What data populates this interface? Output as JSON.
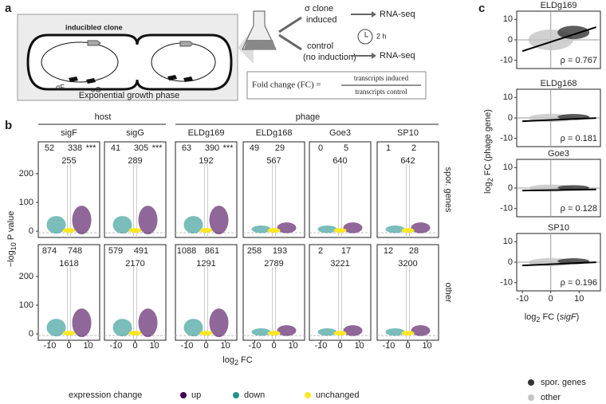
{
  "panel_a": {
    "label": "a",
    "clone": "inducibleσ clone",
    "gene_f": "σF",
    "gene_g": "σG",
    "caption": "Exponential growth phase",
    "induced": [
      "σ clone",
      "induced"
    ],
    "control": [
      "control",
      "(no induction)"
    ],
    "rnaseq": "RNA-seq",
    "time": "2 h",
    "formula": {
      "lhs": "Fold change (FC) =",
      "num": "transcripts induced",
      "den": "transcripts control"
    }
  },
  "panel_b": {
    "label": "b",
    "groups": [
      "host",
      "phage"
    ],
    "columns": [
      "sigF",
      "sigG",
      "ELDg169",
      "ELDg168",
      "Goe3",
      "SP10"
    ],
    "rows": [
      "spor. genes",
      "other"
    ],
    "counts": [
      [
        {
          "down": 52,
          "up": 338,
          "sig": "***",
          "unchanged": 255
        },
        {
          "down": 41,
          "up": 305,
          "sig": "***",
          "unchanged": 289
        },
        {
          "down": 63,
          "up": 390,
          "sig": "***",
          "unchanged": 192
        },
        {
          "down": 49,
          "up": 29,
          "unchanged": 567
        },
        {
          "down": 0,
          "up": 5,
          "unchanged": 640
        },
        {
          "down": 1,
          "up": 2,
          "unchanged": 642
        }
      ],
      [
        {
          "down": 874,
          "up": 748,
          "unchanged": 1618
        },
        {
          "down": 579,
          "up": 491,
          "unchanged": 2170
        },
        {
          "down": 1088,
          "up": 861,
          "unchanged": 1291
        },
        {
          "down": 258,
          "up": 193,
          "unchanged": 2789
        },
        {
          "down": 2,
          "up": 17,
          "unchanged": 3221
        },
        {
          "down": 12,
          "up": 28,
          "unchanged": 3200
        }
      ]
    ],
    "y_label": [
      "−log",
      "10",
      " P value"
    ],
    "x_label": [
      "log",
      "2",
      " FC"
    ],
    "ylim": [
      -22,
      311
    ],
    "yticks": [
      0,
      100,
      200
    ],
    "xlim": [
      -16,
      16
    ],
    "xticks": [
      -10,
      0,
      10
    ]
  },
  "panel_c": {
    "label": "c",
    "panels": [
      {
        "title": "ELDg169",
        "rho": "ρ = 0.767"
      },
      {
        "title": "ELDg168",
        "rho": "ρ = 0.181"
      },
      {
        "title": "Goe3",
        "rho": "ρ = 0.128"
      },
      {
        "title": "SP10",
        "rho": "ρ = 0.196"
      }
    ],
    "y_label": [
      "log",
      "2",
      " FC (phage gene)"
    ],
    "x_label": [
      "log",
      "2",
      " FC (",
      "sigF",
      ")"
    ],
    "ylim": [
      -14,
      14
    ],
    "yticks": [
      10,
      0,
      -10
    ],
    "xlim": [
      -12,
      17.5
    ],
    "xticks": [
      -10,
      0,
      10
    ],
    "legend": [
      {
        "name": "spor. genes",
        "color": "#333333"
      },
      {
        "name": "other",
        "color": "#c4c4c4"
      }
    ]
  },
  "legend": {
    "title": "expression change",
    "items": [
      {
        "name": "up",
        "color": "#440154"
      },
      {
        "name": "down",
        "color": "#21918c"
      },
      {
        "name": "unchanged",
        "color": "#fde725"
      }
    ]
  }
}
